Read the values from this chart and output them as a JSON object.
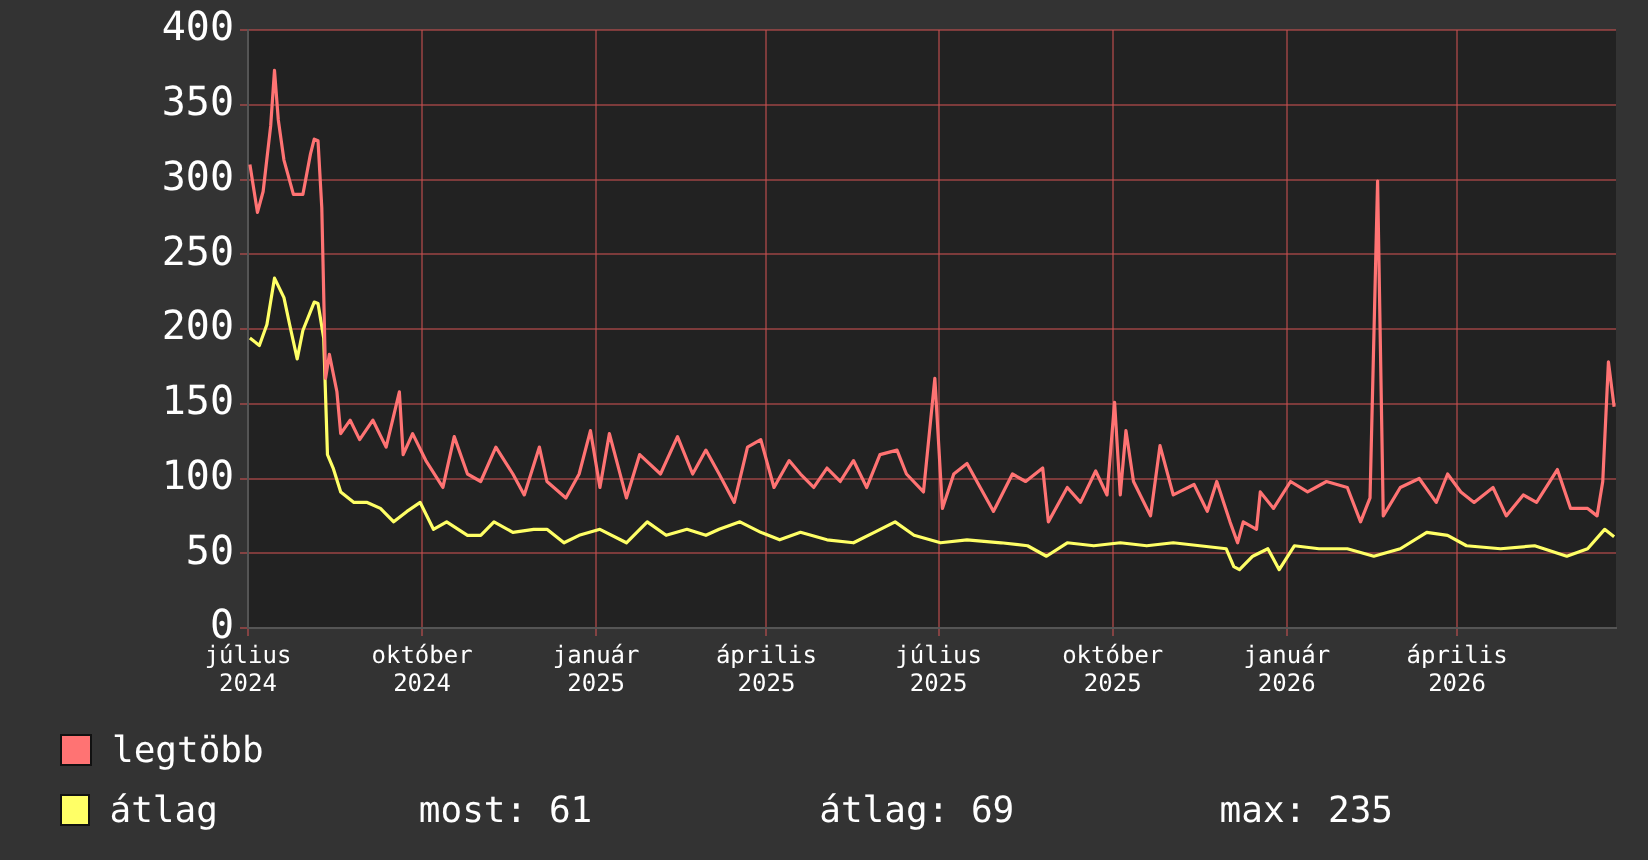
{
  "chart_data": {
    "type": "line",
    "xlim": [
      "2024-07-01",
      "2026-06-24"
    ],
    "xticks": [
      {
        "value": "2024-07-01",
        "label": "július 2024"
      },
      {
        "value": "2024-10-01",
        "label": "október 2024"
      },
      {
        "value": "2025-01-01",
        "label": "január 2025"
      },
      {
        "value": "2025-04-01",
        "label": "április 2025"
      },
      {
        "value": "2025-07-01",
        "label": "július 2025"
      },
      {
        "value": "2025-10-01",
        "label": "október 2025"
      },
      {
        "value": "2026-01-01",
        "label": "január 2026"
      },
      {
        "value": "2026-04-01",
        "label": "április 2026"
      }
    ],
    "ylim": [
      0,
      400
    ],
    "yticks": [
      0,
      50,
      100,
      150,
      200,
      250,
      300,
      350,
      400
    ],
    "grid": true,
    "legend": "bottom left",
    "annotations": [
      "most: 61",
      "átlag: 69",
      "max: 235"
    ],
    "series": [
      {
        "name": "legtöbb",
        "color": "#ff7373",
        "x": [
          "2024-07-02",
          "2024-07-06",
          "2024-07-09",
          "2024-07-13",
          "2024-07-15",
          "2024-07-17",
          "2024-07-20",
          "2024-07-25",
          "2024-07-30",
          "2024-08-03",
          "2024-08-05",
          "2024-08-07",
          "2024-08-09",
          "2024-08-11",
          "2024-08-13",
          "2024-08-17",
          "2024-08-19",
          "2024-08-24",
          "2024-08-29",
          "2024-09-05",
          "2024-09-12",
          "2024-09-19",
          "2024-09-21",
          "2024-09-26",
          "2024-10-03",
          "2024-10-12",
          "2024-10-18",
          "2024-10-25",
          "2024-11-01",
          "2024-11-09",
          "2024-11-18",
          "2024-11-24",
          "2024-12-02",
          "2024-12-06",
          "2024-12-16",
          "2024-12-23",
          "2024-12-29",
          "2025-01-03",
          "2025-01-08",
          "2025-01-17",
          "2025-01-24",
          "2025-02-04",
          "2025-02-13",
          "2025-02-21",
          "2025-02-28",
          "2025-03-07",
          "2025-03-15",
          "2025-03-22",
          "2025-03-29",
          "2025-04-05",
          "2025-04-13",
          "2025-04-19",
          "2025-04-26",
          "2025-05-03",
          "2025-05-10",
          "2025-05-17",
          "2025-05-24",
          "2025-05-31",
          "2025-06-09",
          "2025-06-14",
          "2025-06-23",
          "2025-06-29",
          "2025-07-03",
          "2025-07-09",
          "2025-07-16",
          "2025-07-23",
          "2025-07-30",
          "2025-08-09",
          "2025-08-16",
          "2025-08-25",
          "2025-08-28",
          "2025-09-07",
          "2025-09-14",
          "2025-09-22",
          "2025-09-28",
          "2025-10-02",
          "2025-10-05",
          "2025-10-08",
          "2025-10-12",
          "2025-10-21",
          "2025-10-26",
          "2025-11-02",
          "2025-11-13",
          "2025-11-20",
          "2025-11-25",
          "2025-12-02",
          "2025-12-06",
          "2025-12-09",
          "2025-12-16",
          "2025-12-18",
          "2025-12-25",
          "2026-01-03",
          "2026-01-12",
          "2026-01-22",
          "2026-02-02",
          "2026-02-09",
          "2026-02-14",
          "2026-02-18",
          "2026-02-21",
          "2026-03-02",
          "2026-03-12",
          "2026-03-21",
          "2026-03-27",
          "2026-04-03",
          "2026-04-10",
          "2026-04-20",
          "2026-04-27",
          "2026-05-06",
          "2026-05-13",
          "2026-05-24",
          "2026-05-31",
          "2026-06-09",
          "2026-06-14",
          "2026-06-17",
          "2026-06-20",
          "2026-06-23"
        ],
        "values": [
          310,
          278,
          292,
          336,
          373,
          340,
          313,
          290,
          290,
          317,
          327,
          326,
          281,
          167,
          183,
          158,
          130,
          139,
          126,
          139,
          121,
          158,
          116,
          130,
          112,
          94,
          128,
          103,
          98,
          121,
          103,
          89,
          121,
          98,
          87,
          103,
          132,
          94,
          130,
          87,
          116,
          103,
          128,
          103,
          119,
          103,
          84,
          121,
          126,
          94,
          112,
          103,
          94,
          107,
          98,
          112,
          94,
          116,
          119,
          103,
          91,
          167,
          80,
          103,
          110,
          94,
          78,
          103,
          98,
          107,
          71,
          94,
          84,
          105,
          89,
          151,
          89,
          132,
          98,
          75,
          122,
          89,
          96,
          78,
          98,
          71,
          57,
          71,
          66,
          91,
          80,
          98,
          91,
          98,
          94,
          71,
          87,
          299,
          75,
          94,
          100,
          84,
          103,
          91,
          84,
          94,
          75,
          89,
          84,
          106,
          80,
          80,
          75,
          98,
          178,
          148
        ]
      },
      {
        "name": "átlag",
        "color": "#ffff66",
        "x": [
          "2024-07-02",
          "2024-07-07",
          "2024-07-11",
          "2024-07-15",
          "2024-07-20",
          "2024-07-23",
          "2024-07-27",
          "2024-07-30",
          "2024-08-05",
          "2024-08-07",
          "2024-08-10",
          "2024-08-12",
          "2024-08-15",
          "2024-08-19",
          "2024-08-26",
          "2024-09-02",
          "2024-09-09",
          "2024-09-16",
          "2024-09-23",
          "2024-09-30",
          "2024-10-07",
          "2024-10-14",
          "2024-10-25",
          "2024-11-01",
          "2024-11-08",
          "2024-11-18",
          "2024-11-29",
          "2024-12-06",
          "2024-12-15",
          "2024-12-23",
          "2025-01-03",
          "2025-01-17",
          "2025-01-28",
          "2025-02-07",
          "2025-02-18",
          "2025-02-28",
          "2025-03-07",
          "2025-03-18",
          "2025-03-29",
          "2025-04-08",
          "2025-04-19",
          "2025-05-03",
          "2025-05-17",
          "2025-05-28",
          "2025-06-08",
          "2025-06-18",
          "2025-07-02",
          "2025-07-16",
          "2025-08-03",
          "2025-08-17",
          "2025-08-27",
          "2025-09-07",
          "2025-09-21",
          "2025-10-05",
          "2025-10-19",
          "2025-11-02",
          "2025-11-16",
          "2025-11-30",
          "2025-12-04",
          "2025-12-07",
          "2025-12-14",
          "2025-12-22",
          "2025-12-28",
          "2026-01-05",
          "2026-01-18",
          "2026-02-02",
          "2026-02-16",
          "2026-03-02",
          "2026-03-16",
          "2026-03-27",
          "2026-04-06",
          "2026-04-24",
          "2026-05-12",
          "2026-05-29",
          "2026-06-09",
          "2026-06-18",
          "2026-06-23"
        ],
        "values": [
          194,
          189,
          203,
          234,
          221,
          203,
          180,
          199,
          218,
          217,
          194,
          116,
          107,
          91,
          84,
          84,
          80,
          71,
          78,
          84,
          66,
          71,
          62,
          62,
          71,
          64,
          66,
          66,
          57,
          62,
          66,
          57,
          71,
          62,
          66,
          62,
          66,
          71,
          64,
          59,
          64,
          59,
          57,
          64,
          71,
          62,
          57,
          59,
          57,
          55,
          48,
          57,
          55,
          57,
          55,
          57,
          55,
          53,
          41,
          39,
          48,
          53,
          39,
          55,
          53,
          53,
          48,
          53,
          64,
          62,
          55,
          53,
          55,
          48,
          53,
          66,
          61
        ]
      }
    ]
  }
}
